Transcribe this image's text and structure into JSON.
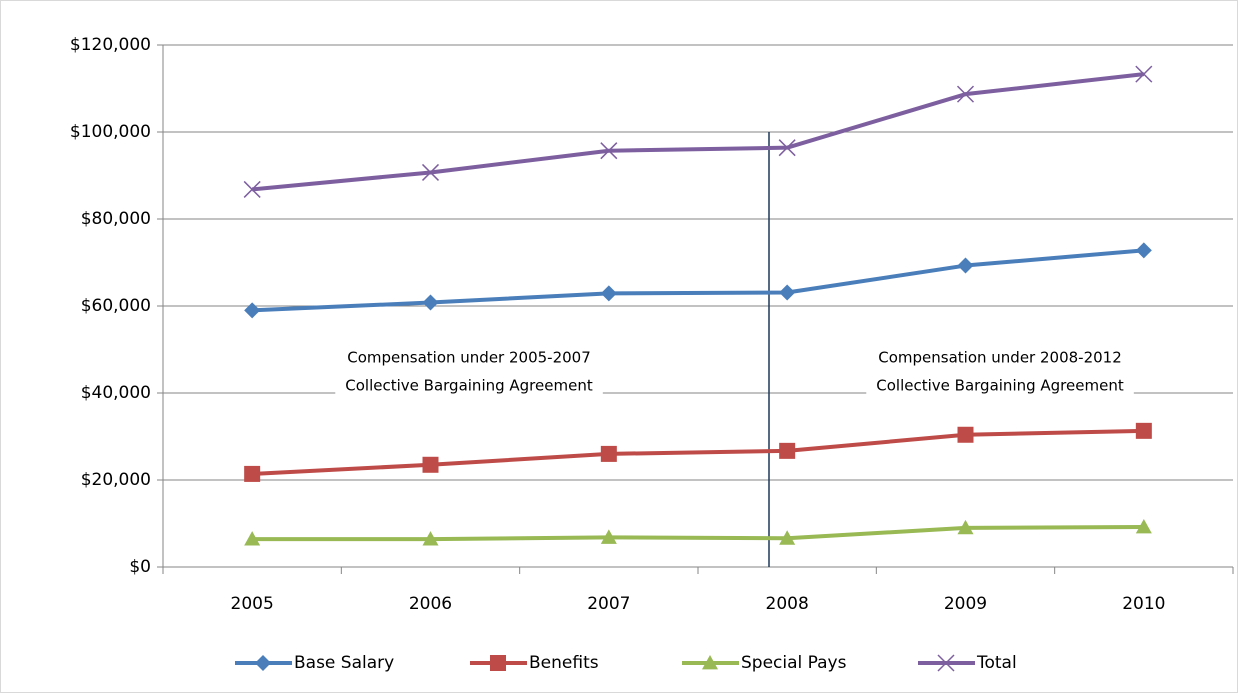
{
  "chart_data": {
    "type": "line",
    "categories": [
      "2005",
      "2006",
      "2007",
      "2008",
      "2009",
      "2010"
    ],
    "series": [
      {
        "name": "Base Salary",
        "color": "#4a7ebb",
        "marker": "diamond",
        "values": [
          59000,
          60800,
          62900,
          63100,
          69300,
          72800
        ]
      },
      {
        "name": "Benefits",
        "color": "#be4b48",
        "marker": "square",
        "values": [
          21400,
          23500,
          26000,
          26700,
          30400,
          31300
        ]
      },
      {
        "name": "Special Pays",
        "color": "#98b954",
        "marker": "triangle",
        "values": [
          6400,
          6400,
          6800,
          6600,
          9000,
          9200
        ]
      },
      {
        "name": "Total",
        "color": "#7d5fa0",
        "marker": "x",
        "values": [
          86800,
          90700,
          95700,
          96400,
          108700,
          113300
        ]
      }
    ],
    "ylim": [
      0,
      120000
    ],
    "yticks": [
      {
        "value": 0,
        "label": "$0"
      },
      {
        "value": 20000,
        "label": "$20,000"
      },
      {
        "value": 40000,
        "label": "$40,000"
      },
      {
        "value": 60000,
        "label": "$60,000"
      },
      {
        "value": 80000,
        "label": "$80,000"
      },
      {
        "value": 100000,
        "label": "$100,000"
      },
      {
        "value": 120000,
        "label": "$120,000"
      }
    ],
    "grid": true,
    "legend": "bottom",
    "annotations": [
      "Compensation under 2005-2007",
      "Collective Bargaining Agreement",
      "Compensation under 2008-2012",
      "Collective Bargaining Agreement"
    ]
  }
}
